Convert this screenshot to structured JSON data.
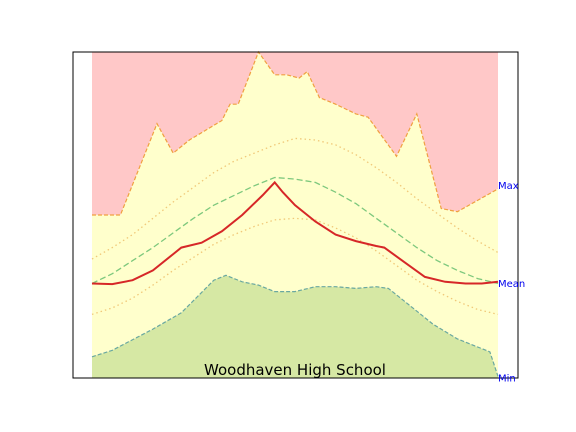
{
  "chart_data": {
    "type": "area",
    "title": "Woodhaven High School",
    "xlabel": "",
    "ylabel": "",
    "xlim": [
      0,
      1
    ],
    "ylim": [
      0,
      1
    ],
    "grid": false,
    "legend": "none",
    "side_labels": [
      {
        "text": "Max",
        "value": 0.59
      },
      {
        "text": "Mean",
        "value": 0.29
      },
      {
        "text": "Min",
        "value": 0.0
      }
    ],
    "bands": {
      "max": {
        "x": [
          0,
          0.07,
          0.16,
          0.2,
          0.24,
          0.32,
          0.34,
          0.36,
          0.41,
          0.45,
          0.48,
          0.51,
          0.53,
          0.56,
          0.6,
          0.65,
          0.68,
          0.75,
          0.8,
          0.86,
          0.9,
          1.0
        ],
        "y": [
          0.5,
          0.5,
          0.78,
          0.69,
          0.73,
          0.79,
          0.84,
          0.84,
          1.0,
          0.93,
          0.93,
          0.92,
          0.94,
          0.86,
          0.84,
          0.81,
          0.8,
          0.68,
          0.81,
          0.52,
          0.51,
          0.58
        ]
      },
      "min": {
        "x": [
          0,
          0.05,
          0.15,
          0.22,
          0.26,
          0.3,
          0.33,
          0.37,
          0.41,
          0.45,
          0.5,
          0.55,
          0.6,
          0.65,
          0.7,
          0.73,
          0.78,
          0.84,
          0.9,
          0.95,
          0.98,
          1.0
        ],
        "y": [
          0.065,
          0.085,
          0.15,
          0.2,
          0.25,
          0.3,
          0.315,
          0.295,
          0.285,
          0.265,
          0.265,
          0.28,
          0.28,
          0.275,
          0.28,
          0.275,
          0.225,
          0.165,
          0.12,
          0.095,
          0.08,
          0.005
        ]
      }
    },
    "series": [
      {
        "style": "solid",
        "color": "#d62728",
        "x": [
          0,
          0.05,
          0.1,
          0.15,
          0.2,
          0.22,
          0.27,
          0.32,
          0.37,
          0.42,
          0.45,
          0.47,
          0.5,
          0.55,
          0.6,
          0.65,
          0.7,
          0.72,
          0.77,
          0.82,
          0.87,
          0.92,
          0.96,
          1.0
        ],
        "y": [
          0.29,
          0.288,
          0.3,
          0.33,
          0.38,
          0.4,
          0.415,
          0.45,
          0.5,
          0.56,
          0.6,
          0.57,
          0.53,
          0.48,
          0.44,
          0.42,
          0.405,
          0.4,
          0.355,
          0.31,
          0.295,
          0.29,
          0.29,
          0.295
        ]
      },
      {
        "style": "dashed",
        "color": "#7dc87d",
        "x": [
          0,
          0.05,
          0.1,
          0.15,
          0.2,
          0.25,
          0.3,
          0.35,
          0.4,
          0.45,
          0.5,
          0.55,
          0.6,
          0.65,
          0.7,
          0.75,
          0.8,
          0.85,
          0.9,
          0.95,
          1.0
        ],
        "y": [
          0.29,
          0.32,
          0.36,
          0.4,
          0.445,
          0.49,
          0.53,
          0.56,
          0.59,
          0.615,
          0.61,
          0.6,
          0.57,
          0.535,
          0.49,
          0.445,
          0.4,
          0.36,
          0.33,
          0.305,
          0.29
        ]
      },
      {
        "style": "dotted",
        "color": "#f0c878",
        "x": [
          0,
          0.05,
          0.1,
          0.15,
          0.2,
          0.25,
          0.3,
          0.35,
          0.4,
          0.45,
          0.5,
          0.55,
          0.6,
          0.65,
          0.7,
          0.75,
          0.8,
          0.85,
          0.9,
          0.95,
          1.0
        ],
        "y": [
          0.365,
          0.4,
          0.44,
          0.49,
          0.54,
          0.585,
          0.63,
          0.665,
          0.69,
          0.715,
          0.735,
          0.73,
          0.715,
          0.685,
          0.645,
          0.6,
          0.55,
          0.505,
          0.46,
          0.42,
          0.385
        ]
      },
      {
        "style": "dotted",
        "color": "#f0c878",
        "x": [
          0,
          0.05,
          0.1,
          0.15,
          0.2,
          0.25,
          0.3,
          0.35,
          0.4,
          0.45,
          0.5,
          0.55,
          0.6,
          0.65,
          0.7,
          0.75,
          0.8,
          0.85,
          0.9,
          0.95,
          1.0
        ],
        "y": [
          0.195,
          0.215,
          0.245,
          0.285,
          0.33,
          0.37,
          0.41,
          0.44,
          0.465,
          0.485,
          0.49,
          0.485,
          0.46,
          0.43,
          0.39,
          0.345,
          0.3,
          0.265,
          0.235,
          0.21,
          0.195
        ]
      }
    ],
    "colors": {
      "top_fill": "#ffc8c8",
      "mid_fill": "#ffffcc",
      "bottom_fill": "#d6e8a4",
      "max_line": "#f0a040",
      "min_line": "#6aa8a0"
    }
  }
}
